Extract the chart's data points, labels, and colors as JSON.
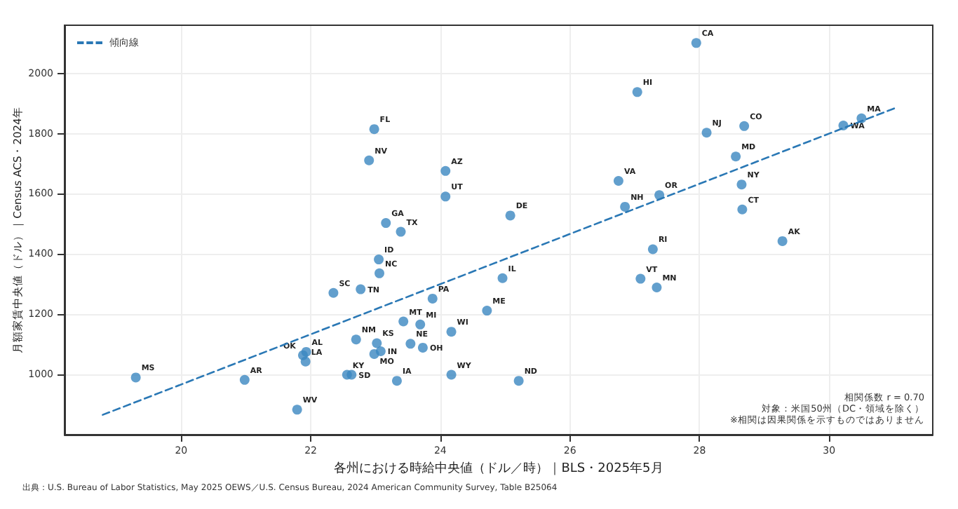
{
  "chart_data": {
    "type": "scatter",
    "xlabel": "各州における時給中央値（ドル／時）｜BLS・2025年5月",
    "ylabel": "月額家賃中央値（ドル）｜Census ACS・2024年",
    "xlim": [
      18.2,
      31.6
    ],
    "xticks": [
      20,
      22,
      24,
      26,
      28,
      30
    ],
    "ylim": [
      800,
      2160
    ],
    "yticks": [
      1000,
      1200,
      1400,
      1600,
      1800,
      2000
    ],
    "grid": true,
    "legend": "top left",
    "marker": "circle",
    "series": [
      {
        "color": "#3b87c0",
        "x": [
          19.3,
          20.98,
          21.79,
          21.93,
          21.88,
          21.92,
          22.35,
          22.77,
          23.05,
          23.06,
          23.16,
          23.39,
          22.7,
          23.02,
          23.08,
          22.98,
          22.56,
          22.63,
          23.43,
          23.69,
          23.54,
          23.73,
          23.33,
          24.17,
          24.17,
          23.88,
          24.08,
          24.08,
          24.72,
          24.96,
          25.08,
          25.21,
          26.75,
          26.85,
          27.38,
          27.28,
          27.09,
          27.34,
          28.65,
          28.66,
          29.28,
          22.98,
          22.9,
          27.95,
          27.04,
          28.11,
          28.69,
          28.56,
          30.22,
          30.5
        ],
        "values": [
          990,
          982,
          883,
          1075,
          1064,
          1043,
          1271,
          1283,
          1382,
          1336,
          1503,
          1474,
          1116,
          1104,
          1077,
          1068,
          999,
          999,
          1176,
          1166,
          1102,
          1089,
          979,
          1142,
          999,
          1252,
          1591,
          1676,
          1212,
          1320,
          1528,
          979,
          1643,
          1557,
          1596,
          1416,
          1318,
          1289,
          1631,
          1548,
          1443,
          1815,
          1711,
          2101,
          1938,
          1803,
          1825,
          1724,
          1827,
          1851
        ]
      },
      {
        "type": "line",
        "name": "傾向線",
        "color": "#2a78b5",
        "line_style": "dashed",
        "marker": "none",
        "x": [
          18.79,
          31.02
        ],
        "values": [
          866,
          1885
        ]
      }
    ],
    "annotations": [
      {
        "text": "MS",
        "x": 19.3,
        "y": 990
      },
      {
        "text": "AR",
        "x": 20.98,
        "y": 982
      },
      {
        "text": "WV",
        "x": 21.79,
        "y": 883
      },
      {
        "text": "AL",
        "x": 21.93,
        "y": 1075
      },
      {
        "text": "OK",
        "x": 21.88,
        "y": 1064
      },
      {
        "text": "LA",
        "x": 21.92,
        "y": 1043
      },
      {
        "text": "SC",
        "x": 22.35,
        "y": 1271
      },
      {
        "text": "TN",
        "x": 22.77,
        "y": 1283
      },
      {
        "text": "ID",
        "x": 23.05,
        "y": 1382
      },
      {
        "text": "NC",
        "x": 23.06,
        "y": 1336
      },
      {
        "text": "GA",
        "x": 23.16,
        "y": 1503
      },
      {
        "text": "TX",
        "x": 23.39,
        "y": 1474
      },
      {
        "text": "NM",
        "x": 22.7,
        "y": 1116
      },
      {
        "text": "KS",
        "x": 23.02,
        "y": 1104
      },
      {
        "text": "IN",
        "x": 23.08,
        "y": 1077
      },
      {
        "text": "MO",
        "x": 22.98,
        "y": 1068
      },
      {
        "text": "KY",
        "x": 22.56,
        "y": 999
      },
      {
        "text": "SD",
        "x": 22.63,
        "y": 999
      },
      {
        "text": "MT",
        "x": 23.43,
        "y": 1176
      },
      {
        "text": "MI",
        "x": 23.69,
        "y": 1166
      },
      {
        "text": "NE",
        "x": 23.54,
        "y": 1102
      },
      {
        "text": "OH",
        "x": 23.73,
        "y": 1089
      },
      {
        "text": "IA",
        "x": 23.33,
        "y": 979
      },
      {
        "text": "WI",
        "x": 24.17,
        "y": 1142
      },
      {
        "text": "WY",
        "x": 24.17,
        "y": 999
      },
      {
        "text": "PA",
        "x": 23.88,
        "y": 1252
      },
      {
        "text": "UT",
        "x": 24.08,
        "y": 1591
      },
      {
        "text": "AZ",
        "x": 24.08,
        "y": 1676
      },
      {
        "text": "ME",
        "x": 24.72,
        "y": 1212
      },
      {
        "text": "IL",
        "x": 24.96,
        "y": 1320
      },
      {
        "text": "DE",
        "x": 25.08,
        "y": 1528
      },
      {
        "text": "ND",
        "x": 25.21,
        "y": 979
      },
      {
        "text": "VA",
        "x": 26.75,
        "y": 1643
      },
      {
        "text": "NH",
        "x": 26.85,
        "y": 1557
      },
      {
        "text": "OR",
        "x": 27.38,
        "y": 1596
      },
      {
        "text": "RI",
        "x": 27.28,
        "y": 1416
      },
      {
        "text": "VT",
        "x": 27.09,
        "y": 1318
      },
      {
        "text": "MN",
        "x": 27.34,
        "y": 1289
      },
      {
        "text": "NY",
        "x": 28.65,
        "y": 1631
      },
      {
        "text": "CT",
        "x": 28.66,
        "y": 1548
      },
      {
        "text": "AK",
        "x": 29.28,
        "y": 1443
      },
      {
        "text": "FL",
        "x": 22.98,
        "y": 1815
      },
      {
        "text": "NV",
        "x": 22.9,
        "y": 1711
      },
      {
        "text": "CA",
        "x": 27.95,
        "y": 2101
      },
      {
        "text": "HI",
        "x": 27.04,
        "y": 1938
      },
      {
        "text": "NJ",
        "x": 28.11,
        "y": 1803
      },
      {
        "text": "CO",
        "x": 28.69,
        "y": 1825
      },
      {
        "text": "MD",
        "x": 28.56,
        "y": 1724
      },
      {
        "text": "WA",
        "x": 30.22,
        "y": 1827
      },
      {
        "text": "MA",
        "x": 30.5,
        "y": 1851
      },
      "相関係数 r = 0.70",
      "対象：米国50州（DC・領域を除く）",
      "※相関は因果関係を示すものではありません",
      "出典：U.S. Bureau of Labor Statistics, May 2025 OEWS／U.S. Census Bureau, 2024 American Community Survey, Table B25064"
    ]
  }
}
